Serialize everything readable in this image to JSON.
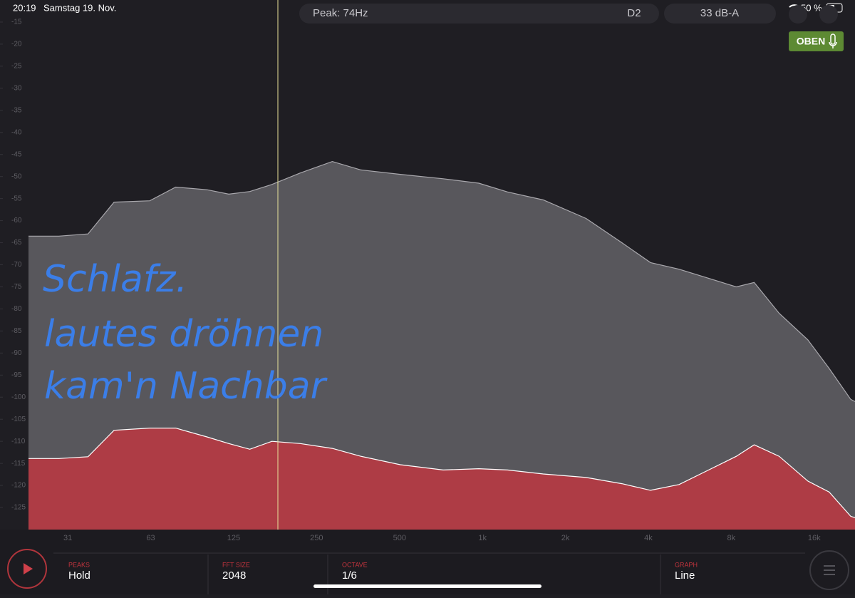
{
  "status_bar": {
    "time": "20:19",
    "date": "Samstag 19. Nov.",
    "battery": "50 %"
  },
  "toolbar": {
    "peak": "Peak: 74Hz",
    "note": "D2",
    "level": "33 dB-A",
    "input": "OBEN"
  },
  "annotation": {
    "lines": [
      "Schlafz.",
      "lautes dröhnen",
      "kam'n Nachbar"
    ]
  },
  "chart_data": {
    "type": "area",
    "log_x": true,
    "x": [
      22.5,
      29,
      37,
      46,
      62,
      77,
      100,
      120,
      143,
      172,
      218,
      285,
      362,
      503,
      720,
      970,
      1233,
      1662,
      2378,
      3207,
      4073,
      5173,
      6572,
      8341,
      9686,
      11943,
      15170,
      18140,
      21706,
      22500
    ],
    "series": [
      {
        "color": "#58575c",
        "line_color": "#a9a8ad",
        "values": [
          -63.5,
          -63.5,
          -63,
          -55.8,
          -55.5,
          -52.4,
          -53,
          -54,
          -53.4,
          -51.8,
          -49.2,
          -46.6,
          -48.5,
          -49.5,
          -50.5,
          -51.5,
          -53.5,
          -55.3,
          -59.5,
          -65,
          -69.5,
          -71,
          -73,
          -75,
          -74,
          -81,
          -87,
          -93.5,
          -100.5,
          -101
        ]
      },
      {
        "color": "#ae3c45",
        "line_color": "#ffffff",
        "values": [
          -113.9,
          -113.9,
          -113.5,
          -107.5,
          -107,
          -107,
          -109,
          -110.5,
          -111.8,
          -110,
          -110.5,
          -111.6,
          -113.4,
          -115.3,
          -116.5,
          -116.2,
          -116.5,
          -117.4,
          -118.2,
          -119.6,
          -121.1,
          -119.8,
          -116.6,
          -113.4,
          -110.8,
          -113.4,
          -119,
          -121.5,
          -127,
          -127.3
        ]
      }
    ],
    "xlim": [
      22.5,
      22500
    ],
    "xticks": [
      {
        "value": 31.25,
        "label": "31"
      },
      {
        "value": 62.5,
        "label": "63"
      },
      125,
      250,
      500,
      {
        "value": 1000,
        "label": "1k"
      },
      {
        "value": 2000,
        "label": "2k"
      },
      {
        "value": 4000,
        "label": "4k"
      },
      {
        "value": 8000,
        "label": "8k"
      },
      {
        "value": 16000,
        "label": "16k"
      }
    ],
    "ylim": [
      -130,
      -10
    ],
    "yticks": [
      -15,
      -20,
      -25,
      -30,
      -35,
      -40,
      -45,
      -50,
      -55,
      -60,
      -65,
      -70,
      -75,
      -80,
      -85,
      -90,
      -95,
      -100,
      -105,
      -110,
      -115,
      -120,
      -125
    ]
  },
  "controls": [
    {
      "label": "PEAKS",
      "value": "Hold"
    },
    {
      "label": "FFT SIZE",
      "value": 2048
    },
    {
      "label": "OCTAVE",
      "value": "1/6"
    },
    {
      "label": "GRAPH",
      "value": "Line"
    }
  ]
}
